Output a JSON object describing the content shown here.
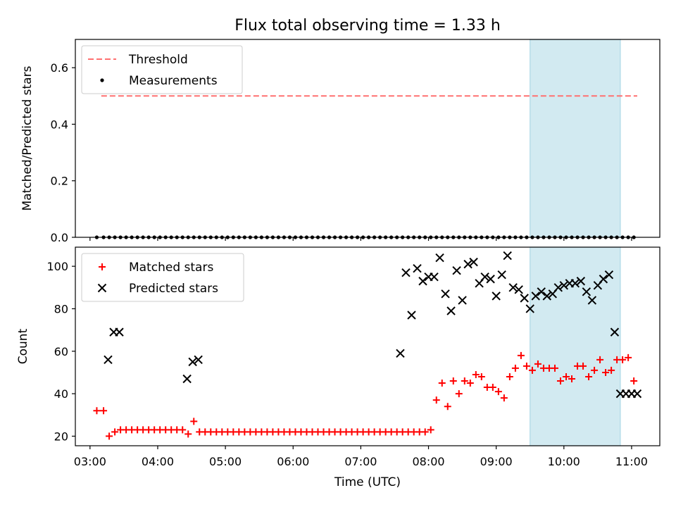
{
  "title": "Flux total observing time = 1.33 h",
  "colors": {
    "threshold": "#ff7070",
    "measurement": "#000000",
    "matched": "#ff0000",
    "predicted": "#000000",
    "highlight": "#add8e6"
  },
  "chart_data": [
    {
      "type": "scatter",
      "ylabel": "Matched/Predicted stars",
      "ylim": [
        0,
        0.7
      ],
      "yticks": [
        0.0,
        0.2,
        0.4,
        0.6
      ],
      "ytick_labels": [
        "0.0",
        "0.2",
        "0.4",
        "0.6"
      ],
      "x_range": [
        "02:47",
        "11:25"
      ],
      "xticks": [
        "03:00",
        "04:00",
        "05:00",
        "06:00",
        "07:00",
        "08:00",
        "09:00",
        "10:00",
        "11:00"
      ],
      "highlight_span": [
        "09:30",
        "10:50"
      ],
      "legend_position": "upper left",
      "series": [
        {
          "name": "Threshold",
          "kind": "line",
          "style": "dashed",
          "x": [
            "03:10",
            "11:05"
          ],
          "y": [
            0.5,
            0.5
          ]
        },
        {
          "name": "Measurements",
          "kind": "scatter",
          "marker": "dot",
          "x": [
            "03:06",
            "03:12",
            "03:17",
            "03:22",
            "03:27",
            "03:32",
            "03:37",
            "03:42",
            "03:47",
            "03:52",
            "03:57",
            "04:02",
            "04:07",
            "04:12",
            "04:17",
            "04:22",
            "04:27",
            "04:32",
            "04:37",
            "04:42",
            "04:47",
            "04:52",
            "04:57",
            "05:02",
            "05:07",
            "05:12",
            "05:17",
            "05:22",
            "05:27",
            "05:32",
            "05:37",
            "05:42",
            "05:47",
            "05:52",
            "05:57",
            "06:02",
            "06:07",
            "06:12",
            "06:17",
            "06:22",
            "06:27",
            "06:32",
            "06:37",
            "06:42",
            "06:47",
            "06:52",
            "06:57",
            "07:02",
            "07:07",
            "07:12",
            "07:17",
            "07:22",
            "07:27",
            "07:32",
            "07:37",
            "07:42",
            "07:47",
            "07:52",
            "07:57",
            "08:02",
            "08:07",
            "08:12",
            "08:17",
            "08:22",
            "08:27",
            "08:32",
            "08:37",
            "08:42",
            "08:47",
            "08:52",
            "08:57",
            "09:02",
            "09:07",
            "09:12",
            "09:17",
            "09:22",
            "09:27",
            "09:32",
            "09:37",
            "09:42",
            "09:47",
            "09:52",
            "09:57",
            "10:02",
            "10:07",
            "10:12",
            "10:17",
            "10:22",
            "10:27",
            "10:32",
            "10:37",
            "10:42",
            "10:47",
            "10:52",
            "10:57",
            "11:02"
          ],
          "y": [
            0,
            0,
            0,
            0,
            0,
            0,
            0,
            0,
            0,
            0,
            0,
            0,
            0,
            0,
            0,
            0,
            0,
            0,
            0,
            0,
            0,
            0,
            0,
            0,
            0,
            0,
            0,
            0,
            0,
            0,
            0,
            0,
            0,
            0,
            0,
            0,
            0,
            0,
            0,
            0,
            0,
            0,
            0,
            0,
            0,
            0,
            0,
            0,
            0,
            0,
            0,
            0,
            0,
            0,
            0,
            0,
            0,
            0,
            0,
            0,
            0,
            0,
            0,
            0,
            0,
            0,
            0,
            0,
            0,
            0,
            0,
            0,
            0,
            0,
            0,
            0,
            0,
            0,
            0,
            0,
            0,
            0,
            0,
            0,
            0,
            0,
            0,
            0,
            0,
            0,
            0,
            0,
            0,
            0,
            0,
            0
          ]
        }
      ]
    },
    {
      "type": "scatter",
      "xlabel": "Time (UTC)",
      "ylabel": "Count",
      "ylim": [
        15.5,
        109
      ],
      "yticks": [
        20,
        40,
        60,
        80,
        100
      ],
      "ytick_labels": [
        "20",
        "40",
        "60",
        "80",
        "100"
      ],
      "x_range": [
        "02:47",
        "11:25"
      ],
      "xticks": [
        "03:00",
        "04:00",
        "05:00",
        "06:00",
        "07:00",
        "08:00",
        "09:00",
        "10:00",
        "11:00"
      ],
      "xtick_labels": [
        "03:00",
        "04:00",
        "05:00",
        "06:00",
        "07:00",
        "08:00",
        "09:00",
        "10:00",
        "11:00"
      ],
      "highlight_span": [
        "09:30",
        "10:50"
      ],
      "legend_position": "upper left",
      "series": [
        {
          "name": "Matched stars",
          "kind": "scatter",
          "marker": "plus",
          "x": [
            "03:06",
            "03:12",
            "03:17",
            "03:22",
            "03:27",
            "03:32",
            "03:37",
            "03:42",
            "03:47",
            "03:52",
            "03:57",
            "04:02",
            "04:07",
            "04:12",
            "04:17",
            "04:22",
            "04:27",
            "04:32",
            "04:37",
            "04:42",
            "04:47",
            "04:52",
            "04:57",
            "05:02",
            "05:07",
            "05:12",
            "05:17",
            "05:22",
            "05:27",
            "05:32",
            "05:37",
            "05:42",
            "05:47",
            "05:52",
            "05:57",
            "06:02",
            "06:07",
            "06:12",
            "06:17",
            "06:22",
            "06:27",
            "06:32",
            "06:37",
            "06:42",
            "06:47",
            "06:52",
            "06:57",
            "07:02",
            "07:07",
            "07:12",
            "07:17",
            "07:22",
            "07:27",
            "07:32",
            "07:37",
            "07:42",
            "07:47",
            "07:52",
            "07:57",
            "08:02",
            "08:07",
            "08:12",
            "08:17",
            "08:22",
            "08:27",
            "08:32",
            "08:37",
            "08:42",
            "08:47",
            "08:52",
            "08:57",
            "09:02",
            "09:07",
            "09:12",
            "09:17",
            "09:22",
            "09:27",
            "09:32",
            "09:37",
            "09:42",
            "09:47",
            "09:52",
            "09:57",
            "10:02",
            "10:07",
            "10:12",
            "10:17",
            "10:22",
            "10:27",
            "10:32",
            "10:37",
            "10:42",
            "10:47",
            "10:52",
            "10:57",
            "11:02"
          ],
          "y": [
            32,
            32,
            20,
            22,
            23,
            23,
            23,
            23,
            23,
            23,
            23,
            23,
            23,
            23,
            23,
            23,
            21,
            27,
            22,
            22,
            22,
            22,
            22,
            22,
            22,
            22,
            22,
            22,
            22,
            22,
            22,
            22,
            22,
            22,
            22,
            22,
            22,
            22,
            22,
            22,
            22,
            22,
            22,
            22,
            22,
            22,
            22,
            22,
            22,
            22,
            22,
            22,
            22,
            22,
            22,
            22,
            22,
            22,
            22,
            23,
            37,
            45,
            34,
            46,
            40,
            46,
            45,
            49,
            48,
            43,
            43,
            41,
            38,
            48,
            52,
            58,
            53,
            51,
            54,
            52,
            52,
            52,
            46,
            48,
            47,
            53,
            53,
            48,
            51,
            56,
            50,
            51,
            56,
            56,
            57,
            46
          ]
        },
        {
          "name": "Predicted stars",
          "kind": "scatter",
          "marker": "x",
          "x": [
            "03:16",
            "03:21",
            "03:26",
            "04:26",
            "04:31",
            "04:36",
            "07:35",
            "07:40",
            "07:45",
            "07:50",
            "07:55",
            "08:00",
            "08:05",
            "08:10",
            "08:15",
            "08:20",
            "08:25",
            "08:30",
            "08:35",
            "08:40",
            "08:45",
            "08:50",
            "08:55",
            "09:00",
            "09:05",
            "09:10",
            "09:15",
            "09:20",
            "09:25",
            "09:30",
            "09:35",
            "09:40",
            "09:45",
            "09:50",
            "09:55",
            "10:00",
            "10:05",
            "10:10",
            "10:15",
            "10:20",
            "10:25",
            "10:30",
            "10:35",
            "10:40",
            "10:45",
            "10:50",
            "10:55",
            "11:00",
            "11:05"
          ],
          "y": [
            56,
            69,
            69,
            47,
            55,
            56,
            59,
            97,
            77,
            99,
            93,
            95,
            95,
            104,
            87,
            79,
            98,
            84,
            101,
            102,
            92,
            95,
            94,
            86,
            96,
            105,
            90,
            89,
            85,
            80,
            86,
            88,
            86,
            87,
            90,
            91,
            92,
            92,
            93,
            88,
            84,
            91,
            94,
            96,
            69,
            40,
            40,
            40,
            40
          ]
        }
      ]
    }
  ]
}
